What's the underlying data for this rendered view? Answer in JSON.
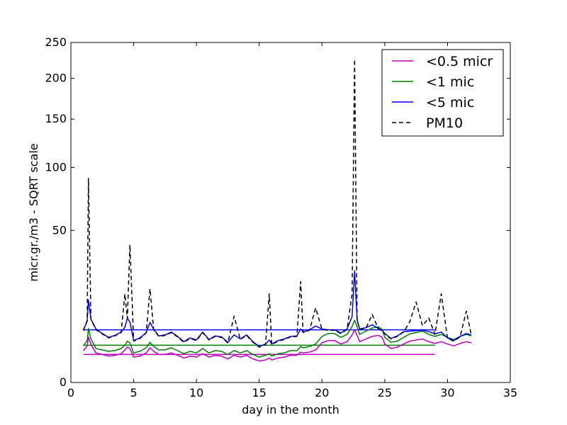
{
  "chart_data": {
    "type": "line",
    "title": "",
    "xlabel": "day in the month",
    "ylabel": "micr.gr./m3 - SQRT scale",
    "xlim": [
      0,
      35
    ],
    "ylim": [
      0,
      250
    ],
    "y_scale": "sqrt",
    "grid": false,
    "legend_position": "top-right",
    "x_ticks": [
      0,
      5,
      10,
      15,
      20,
      25,
      30,
      35
    ],
    "x_tick_labels": [
      "0",
      "5",
      "10",
      "15",
      "20",
      "25",
      "30",
      "35"
    ],
    "y_ticks": [
      0,
      50,
      100,
      150,
      200,
      250
    ],
    "y_tick_labels": [
      "0",
      "50",
      "100",
      "150",
      "200",
      "250"
    ],
    "series": [
      {
        "name": "<0.5 micr",
        "color": "#bf00bf",
        "dash": "solid",
        "x": [
          1.0,
          1.3,
          1.4,
          1.6,
          2.0,
          2.5,
          3.0,
          3.5,
          4.0,
          4.3,
          4.5,
          4.7,
          5.0,
          5.5,
          6.0,
          6.3,
          6.6,
          7.0,
          7.5,
          8.0,
          8.5,
          9.0,
          9.5,
          10.0,
          10.5,
          11.0,
          11.5,
          12.0,
          12.5,
          13.0,
          13.5,
          14.0,
          14.5,
          15.0,
          15.5,
          15.8,
          16.0,
          16.5,
          17.0,
          17.5,
          18.0,
          18.3,
          18.5,
          19.0,
          19.5,
          20.0,
          20.5,
          21.0,
          21.5,
          22.0,
          22.4,
          22.6,
          22.8,
          23.0,
          23.5,
          24.0,
          24.5,
          24.8,
          25.0,
          25.5,
          26.0,
          26.5,
          27.0,
          27.5,
          28.0,
          28.5,
          29.0,
          29.5,
          30.0,
          30.5,
          31.0,
          31.5,
          31.9
        ],
        "y": [
          2.2,
          2.9,
          4.5,
          3.1,
          1.9,
          1.7,
          1.5,
          1.6,
          1.8,
          2.3,
          2.7,
          2.5,
          1.4,
          1.5,
          1.9,
          2.6,
          2.1,
          1.7,
          1.7,
          1.9,
          1.6,
          1.3,
          1.5,
          1.4,
          1.8,
          1.4,
          1.6,
          1.5,
          1.2,
          1.6,
          1.4,
          1.6,
          1.2,
          1.0,
          1.1,
          1.3,
          1.1,
          1.3,
          1.4,
          1.6,
          1.6,
          2.0,
          1.9,
          2.0,
          2.3,
          3.4,
          3.8,
          3.8,
          3.2,
          3.6,
          4.9,
          6.0,
          4.8,
          3.6,
          4.1,
          4.6,
          4.8,
          4.4,
          3.2,
          2.5,
          2.7,
          3.2,
          3.7,
          3.9,
          4.1,
          3.6,
          3.3,
          3.6,
          3.2,
          2.9,
          3.3,
          3.6,
          3.4
        ]
      },
      {
        "name": "<1 mic",
        "color": "#008000",
        "dash": "solid",
        "x": [
          1.0,
          1.3,
          1.4,
          1.6,
          2.0,
          2.5,
          3.0,
          3.5,
          4.0,
          4.3,
          4.5,
          4.7,
          5.0,
          5.5,
          6.0,
          6.3,
          6.6,
          7.0,
          7.5,
          8.0,
          8.5,
          9.0,
          9.5,
          10.0,
          10.5,
          11.0,
          11.5,
          12.0,
          12.5,
          13.0,
          13.5,
          14.0,
          14.5,
          15.0,
          15.5,
          15.8,
          16.0,
          16.5,
          17.0,
          17.5,
          18.0,
          18.3,
          18.5,
          19.0,
          19.5,
          20.0,
          20.5,
          21.0,
          21.5,
          22.0,
          22.4,
          22.6,
          22.8,
          23.0,
          23.5,
          24.0,
          24.5,
          24.8,
          25.0,
          25.5,
          26.0,
          26.5,
          27.0,
          27.5,
          28.0,
          28.5,
          29.0,
          29.5,
          30.0,
          30.5,
          31.0,
          31.5,
          31.9
        ],
        "y": [
          2.9,
          3.8,
          6.3,
          4.1,
          2.5,
          2.3,
          2.1,
          2.2,
          2.5,
          3.0,
          3.7,
          3.4,
          1.9,
          2.1,
          2.6,
          3.5,
          2.8,
          2.3,
          2.3,
          2.6,
          2.2,
          1.8,
          2.1,
          1.9,
          2.5,
          1.9,
          2.2,
          2.1,
          1.7,
          2.2,
          1.9,
          2.2,
          1.7,
          1.4,
          1.6,
          1.8,
          1.5,
          1.8,
          1.9,
          2.2,
          2.2,
          2.8,
          2.6,
          2.8,
          3.2,
          4.6,
          5.2,
          5.2,
          4.4,
          5.0,
          6.8,
          8.4,
          6.7,
          5.0,
          5.7,
          6.4,
          6.7,
          6.1,
          4.4,
          3.5,
          3.7,
          4.4,
          5.1,
          5.4,
          5.7,
          5.0,
          4.6,
          5.0,
          4.4,
          4.0,
          4.6,
          5.0,
          4.7
        ]
      },
      {
        "name": "<5 mic",
        "color": "#0000ff",
        "dash": "solid",
        "x": [
          1.0,
          1.3,
          1.4,
          1.6,
          2.0,
          2.5,
          3.0,
          3.5,
          4.0,
          4.3,
          4.5,
          4.7,
          5.0,
          5.5,
          6.0,
          6.3,
          6.6,
          7.0,
          7.5,
          8.0,
          8.5,
          9.0,
          9.5,
          10.0,
          10.5,
          11.0,
          11.5,
          12.0,
          12.5,
          13.0,
          13.5,
          14.0,
          14.5,
          15.0,
          15.5,
          15.8,
          16.0,
          16.5,
          17.0,
          17.5,
          18.0,
          18.3,
          18.5,
          19.0,
          19.5,
          20.0,
          20.5,
          21.0,
          21.5,
          22.0,
          22.4,
          22.6,
          22.8,
          23.0,
          23.5,
          24.0,
          24.5,
          24.8,
          25.0,
          25.5,
          26.0,
          26.5,
          27.0,
          27.5,
          28.0,
          28.5,
          29.0,
          29.5,
          30.0,
          30.5,
          31.0,
          31.5,
          31.9
        ],
        "y": [
          6.0,
          8.1,
          14.8,
          8.7,
          6.2,
          5.2,
          4.4,
          4.8,
          5.5,
          6.6,
          9.0,
          7.9,
          3.8,
          4.3,
          5.4,
          7.8,
          6.1,
          4.7,
          4.9,
          5.5,
          4.6,
          3.6,
          4.3,
          3.9,
          5.5,
          4.0,
          4.7,
          4.5,
          3.5,
          4.9,
          4.1,
          4.9,
          3.6,
          2.8,
          3.2,
          3.9,
          3.2,
          3.8,
          4.1,
          4.6,
          4.7,
          6.2,
          5.5,
          6.0,
          6.9,
          6.2,
          6.0,
          6.0,
          5.3,
          6.2,
          9.4,
          27.0,
          8.5,
          6.2,
          6.5,
          7.2,
          6.3,
          5.8,
          5.2,
          4.2,
          4.7,
          5.6,
          5.7,
          5.8,
          5.9,
          5.6,
          5.1,
          5.5,
          4.3,
          3.8,
          4.6,
          5.2,
          4.9
        ]
      },
      {
        "name": "PM10",
        "color": "#000000",
        "dash": "dashed",
        "x": [
          1.0,
          1.3,
          1.4,
          1.6,
          2.0,
          2.5,
          3.0,
          3.5,
          4.0,
          4.3,
          4.5,
          4.7,
          5.0,
          5.5,
          6.0,
          6.3,
          6.6,
          7.0,
          7.5,
          8.0,
          8.5,
          9.0,
          9.5,
          10.0,
          10.5,
          11.0,
          11.5,
          12.0,
          12.5,
          13.0,
          13.5,
          14.0,
          14.5,
          15.0,
          15.5,
          15.8,
          16.0,
          16.5,
          17.0,
          17.5,
          18.0,
          18.3,
          18.5,
          19.0,
          19.5,
          20.0,
          20.5,
          21.0,
          21.5,
          22.0,
          22.4,
          22.6,
          22.8,
          23.0,
          23.5,
          24.0,
          24.5,
          24.8,
          25.0,
          25.5,
          26.0,
          26.5,
          27.0,
          27.5,
          28.0,
          28.5,
          29.0,
          29.5,
          30.0,
          30.5,
          31.0,
          31.5,
          31.9
        ],
        "y": [
          5.8,
          8.3,
          90.0,
          8.6,
          6.0,
          5.1,
          4.3,
          4.7,
          5.4,
          17.0,
          8.8,
          41.0,
          3.7,
          4.2,
          5.3,
          19.0,
          6.0,
          4.6,
          4.8,
          5.4,
          4.5,
          3.5,
          4.2,
          3.8,
          5.4,
          3.9,
          4.6,
          4.4,
          3.4,
          9.5,
          4.0,
          4.8,
          3.5,
          2.7,
          3.1,
          17.0,
          3.1,
          3.7,
          4.0,
          4.5,
          4.6,
          22.0,
          5.4,
          5.9,
          12.0,
          6.1,
          5.9,
          5.9,
          5.2,
          6.1,
          17.0,
          226.0,
          8.4,
          6.1,
          6.4,
          10.0,
          6.2,
          5.7,
          5.1,
          4.1,
          4.6,
          5.5,
          8.0,
          14.0,
          7.0,
          9.0,
          5.0,
          17.0,
          4.2,
          3.7,
          4.5,
          11.0,
          4.8
        ]
      }
    ],
    "reference_lines": [
      {
        "series": "<0.5 micr",
        "x": [
          1.0,
          29.0
        ],
        "y": [
          1.7,
          1.7
        ],
        "color": "#bf00bf"
      },
      {
        "series": "<1 mic",
        "x": [
          1.0,
          29.0
        ],
        "y": [
          3.0,
          3.0
        ],
        "color": "#008000"
      },
      {
        "series": "<5 mic",
        "x": [
          1.0,
          29.0
        ],
        "y": [
          6.0,
          6.0
        ],
        "color": "#0000ff"
      }
    ]
  }
}
